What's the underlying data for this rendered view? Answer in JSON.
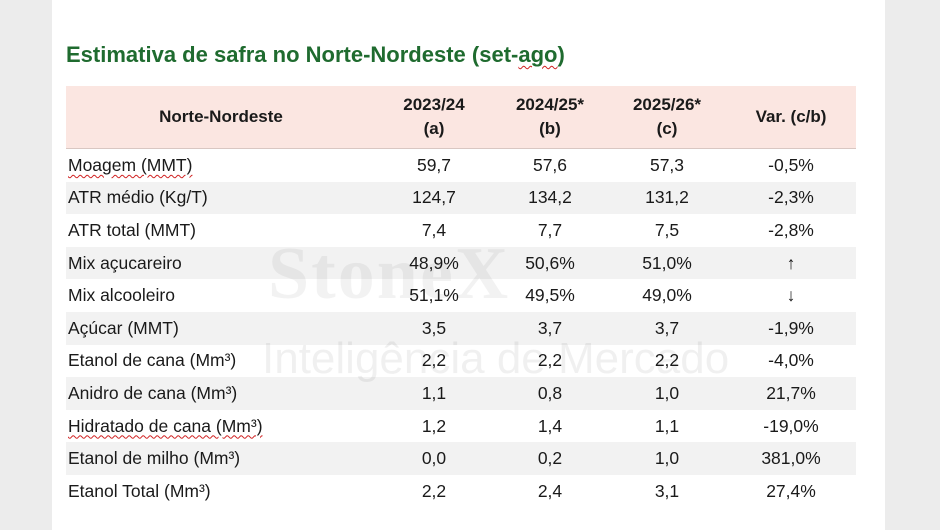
{
  "title_parts": {
    "before": "Estimativa de safra no Norte-Nordeste (set-",
    "squiggle": "ago",
    "after": ")"
  },
  "watermark": {
    "line1": "StoneX",
    "line2": "Inteligência de Mercado"
  },
  "table": {
    "headers": [
      {
        "lines": [
          "Norte-Nordeste"
        ]
      },
      {
        "lines": [
          "2023/24",
          "(a)"
        ]
      },
      {
        "lines": [
          "2024/25*",
          "(b)"
        ]
      },
      {
        "lines": [
          "2025/26*",
          "(c)"
        ]
      },
      {
        "lines": [
          "Var.  (c/b)"
        ]
      }
    ],
    "rows": [
      {
        "label": "Moagem (MMT)",
        "a": "59,7",
        "b": "57,6",
        "c": "57,3",
        "var": "-0,5%"
      },
      {
        "label": "ATR médio (Kg/T)",
        "a": "124,7",
        "b": "134,2",
        "c": "131,2",
        "var": "-2,3%"
      },
      {
        "label": "ATR total (MMT)",
        "a": "7,4",
        "b": "7,7",
        "c": "7,5",
        "var": "-2,8%"
      },
      {
        "label": "Mix açucareiro",
        "a": "48,9%",
        "b": "50,6%",
        "c": "51,0%",
        "var_icon": "arrow-up-icon"
      },
      {
        "label": "Mix alcooleiro",
        "a": "51,1%",
        "b": "49,5%",
        "c": "49,0%",
        "var_icon": "arrow-down-icon"
      },
      {
        "label": "Açúcar (MMT)",
        "a": "3,5",
        "b": "3,7",
        "c": "3,7",
        "var": "-1,9%"
      },
      {
        "label": "Etanol de cana (Mm³)",
        "a": "2,2",
        "b": "2,2",
        "c": "2,2",
        "var": "-4,0%"
      },
      {
        "label": "Anidro de cana (Mm³)",
        "a": "1,1",
        "b": "0,8",
        "c": "1,0",
        "var": "21,7%"
      },
      {
        "label": "Hidratado de cana (Mm³)",
        "a": "1,2",
        "b": "1,4",
        "c": "1,1",
        "var": "-19,0%"
      },
      {
        "label": "Etanol de milho (Mm³)",
        "a": "0,0",
        "b": "0,2",
        "c": "1,0",
        "var": "381,0%"
      },
      {
        "label": "Etanol Total (Mm³)",
        "a": "2,2",
        "b": "2,4",
        "c": "3,1",
        "var": "27,4%"
      }
    ]
  },
  "colors": {
    "title": "#1f6b2f",
    "header_bg": "#fbe6e1",
    "stripe_bg": "#f2f2f2"
  }
}
